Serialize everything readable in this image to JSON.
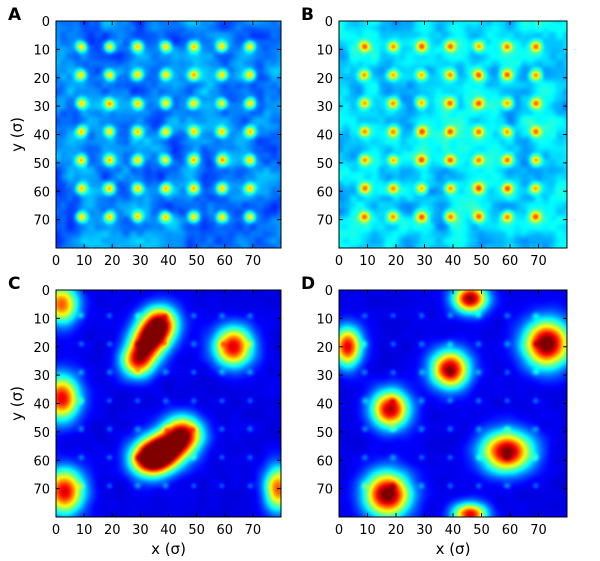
{
  "chart_data": [
    {
      "type": "heatmap",
      "panel_label": "A",
      "xlabel": "",
      "ylabel": "y (σ)",
      "xlim": [
        0,
        80
      ],
      "ylim": [
        80,
        0
      ],
      "xticks": [
        0,
        10,
        20,
        30,
        40,
        50,
        60,
        70
      ],
      "yticks": [
        0,
        10,
        20,
        30,
        40,
        50,
        60,
        70
      ],
      "lattice": {
        "spacing": 10,
        "first": 9,
        "count": 7
      },
      "peaks": [],
      "colormap": "jet",
      "background_level": 0.25
    },
    {
      "type": "heatmap",
      "panel_label": "B",
      "xlabel": "",
      "ylabel": "",
      "xlim": [
        0,
        80
      ],
      "ylim": [
        80,
        0
      ],
      "xticks": [
        0,
        10,
        20,
        30,
        40,
        50,
        60,
        70
      ],
      "yticks": [
        0,
        10,
        20,
        30,
        40,
        50,
        60,
        70
      ],
      "lattice": {
        "spacing": 10,
        "first": 9,
        "count": 7
      },
      "peaks": [],
      "colormap": "jet",
      "background_level": 0.34
    },
    {
      "type": "heatmap",
      "panel_label": "C",
      "xlabel": "x (σ)",
      "ylabel": "y (σ)",
      "xlim": [
        0,
        80
      ],
      "ylim": [
        80,
        0
      ],
      "xticks": [
        0,
        10,
        20,
        30,
        40,
        50,
        60,
        70
      ],
      "yticks": [
        0,
        10,
        20,
        30,
        40,
        50,
        60,
        70
      ],
      "lattice": {
        "spacing": 10,
        "first": 9,
        "count": 7
      },
      "peaks": [
        {
          "x": 33,
          "y": 18,
          "amp": 0.8,
          "sx": 3.2,
          "sy": 3.2
        },
        {
          "x": 37,
          "y": 12,
          "amp": 0.85,
          "sx": 3.2,
          "sy": 3.2
        },
        {
          "x": 29,
          "y": 25,
          "amp": 0.7,
          "sx": 3.0,
          "sy": 3.0
        },
        {
          "x": 63,
          "y": 20,
          "amp": 0.82,
          "sx": 3.5,
          "sy": 3.5
        },
        {
          "x": 2,
          "y": 38,
          "amp": 0.8,
          "sx": 3.2,
          "sy": 4.0
        },
        {
          "x": 38,
          "y": 57,
          "amp": 0.95,
          "sx": 4.0,
          "sy": 3.2
        },
        {
          "x": 45,
          "y": 51,
          "amp": 0.88,
          "sx": 3.5,
          "sy": 3.2
        },
        {
          "x": 33,
          "y": 60,
          "amp": 0.75,
          "sx": 3.5,
          "sy": 3.0
        },
        {
          "x": 2,
          "y": 5,
          "amp": 0.7,
          "sx": 3.0,
          "sy": 3.5
        },
        {
          "x": 3,
          "y": 71,
          "amp": 0.8,
          "sx": 3.5,
          "sy": 4.0
        },
        {
          "x": 79,
          "y": 70,
          "amp": 0.7,
          "sx": 2.5,
          "sy": 4.0
        }
      ],
      "colormap": "jet",
      "background_level": 0.1
    },
    {
      "type": "heatmap",
      "panel_label": "D",
      "xlabel": "x (σ)",
      "ylabel": "",
      "xlim": [
        0,
        80
      ],
      "ylim": [
        80,
        0
      ],
      "xticks": [
        0,
        10,
        20,
        30,
        40,
        50,
        60,
        70
      ],
      "yticks": [
        0,
        10,
        20,
        30,
        40,
        50,
        60,
        70
      ],
      "lattice": {
        "spacing": 10,
        "first": 9,
        "count": 7
      },
      "peaks": [
        {
          "x": 46,
          "y": 3,
          "amp": 0.9,
          "sx": 3.0,
          "sy": 2.5
        },
        {
          "x": 3,
          "y": 20,
          "amp": 0.8,
          "sx": 2.5,
          "sy": 3.5
        },
        {
          "x": 73,
          "y": 19,
          "amp": 0.95,
          "sx": 4.2,
          "sy": 4.2
        },
        {
          "x": 39,
          "y": 28,
          "amp": 0.88,
          "sx": 3.4,
          "sy": 3.4
        },
        {
          "x": 18,
          "y": 42,
          "amp": 0.85,
          "sx": 3.4,
          "sy": 3.4
        },
        {
          "x": 59,
          "y": 57,
          "amp": 0.9,
          "sx": 4.5,
          "sy": 3.6
        },
        {
          "x": 17,
          "y": 72,
          "amp": 0.95,
          "sx": 4.0,
          "sy": 4.0
        },
        {
          "x": 46,
          "y": 79,
          "amp": 0.8,
          "sx": 3.0,
          "sy": 2.0
        }
      ],
      "colormap": "jet",
      "background_level": 0.1
    }
  ]
}
